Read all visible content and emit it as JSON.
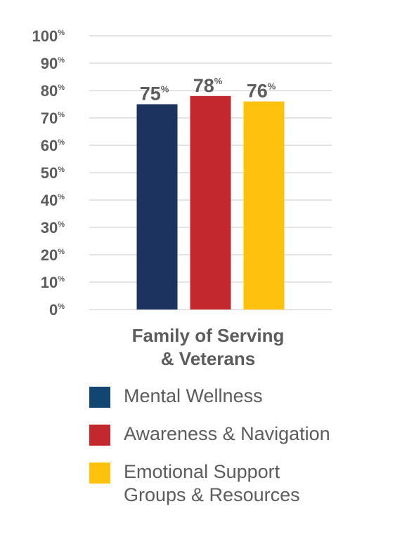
{
  "chart_data": {
    "type": "bar",
    "categories": [
      "Family of Serving & Veterans"
    ],
    "category_label_lines": [
      "Family of Serving",
      "& Veterans"
    ],
    "series": [
      {
        "name": "Mental Wellness",
        "values": [
          75
        ],
        "label": "75",
        "color": "#1c3360"
      },
      {
        "name": "Awareness & Navigation",
        "values": [
          78
        ],
        "label": "78",
        "color": "#c3282e"
      },
      {
        "name": "Emotional Support Groups & Resources",
        "values": [
          76
        ],
        "label": "76",
        "color": "#fec20e"
      }
    ],
    "legend": [
      {
        "lines": [
          "Mental Wellness"
        ],
        "color": "#12456f"
      },
      {
        "lines": [
          "Awareness & Navigation"
        ],
        "color": "#c3282e"
      },
      {
        "lines": [
          "Emotional Support",
          "Groups & Resources"
        ],
        "color": "#fec20e"
      }
    ],
    "yticks": [
      {
        "value": 0,
        "label": "0",
        "suffix": "%"
      },
      {
        "value": 10,
        "label": "10",
        "suffix": "%"
      },
      {
        "value": 20,
        "label": "20",
        "suffix": "%"
      },
      {
        "value": 30,
        "label": "30",
        "suffix": "%"
      },
      {
        "value": 40,
        "label": "40",
        "suffix": "%"
      },
      {
        "value": 50,
        "label": "50",
        "suffix": "%"
      },
      {
        "value": 60,
        "label": "60",
        "suffix": "%"
      },
      {
        "value": 70,
        "label": "70",
        "suffix": "%"
      },
      {
        "value": 80,
        "label": "80",
        "suffix": "%"
      },
      {
        "value": 90,
        "label": "90",
        "suffix": "%"
      },
      {
        "value": 100,
        "label": "100",
        "suffix": "%"
      }
    ],
    "value_suffix": "%",
    "ylim": [
      0,
      100
    ],
    "grid": true,
    "legend_placement": "bottom",
    "title": "",
    "xlabel": "",
    "ylabel": ""
  }
}
